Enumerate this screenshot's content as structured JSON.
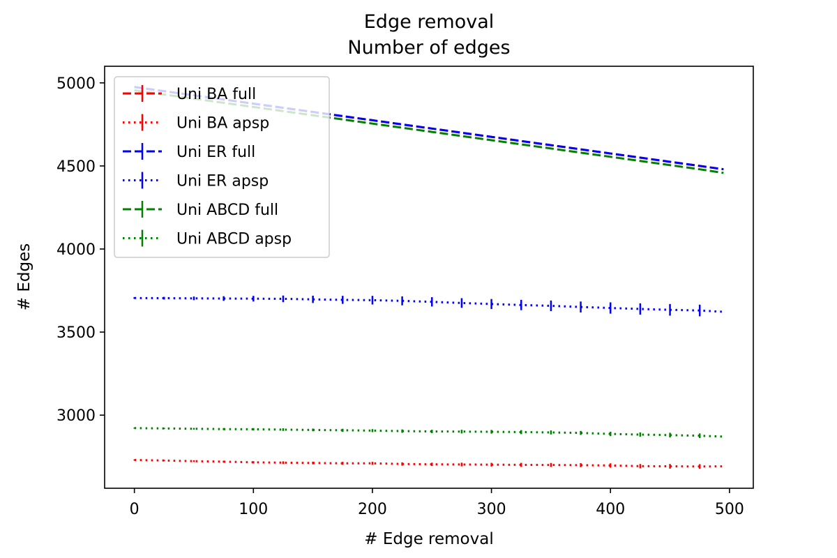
{
  "chart_data": {
    "type": "line",
    "title_lines": [
      "Edge removal",
      "Number of edges"
    ],
    "xlabel": "#  Edge removal",
    "ylabel": "# Edges",
    "xlim": [
      -25,
      520
    ],
    "ylim": [
      2560,
      5100
    ],
    "xticks": [
      0,
      100,
      200,
      300,
      400,
      500
    ],
    "yticks": [
      3000,
      3500,
      4000,
      4500,
      5000
    ],
    "grid": false,
    "legend_position": "upper-left",
    "x": [
      0,
      25,
      50,
      75,
      100,
      125,
      150,
      175,
      200,
      225,
      250,
      275,
      300,
      325,
      350,
      375,
      400,
      425,
      450,
      475,
      495
    ],
    "series": [
      {
        "name": "Uni BA full",
        "color": "#ff0000",
        "style": "dashed",
        "values": [
          4975,
          4950,
          4925,
          4900,
          4875,
          4850,
          4825,
          4800,
          4775,
          4750,
          4725,
          4700,
          4675,
          4650,
          4625,
          4600,
          4575,
          4550,
          4525,
          4500,
          4480
        ]
      },
      {
        "name": "Uni BA apsp",
        "color": "#ff0000",
        "style": "dotted",
        "values": [
          2730,
          2727,
          2723,
          2720,
          2716,
          2714,
          2712,
          2710,
          2710,
          2706,
          2704,
          2703,
          2702,
          2701,
          2700,
          2699,
          2697,
          2693,
          2692,
          2691,
          2692
        ],
        "errors": [
          3,
          4,
          5,
          6,
          7,
          8,
          8,
          9,
          9,
          10,
          10,
          11,
          11,
          12,
          12,
          12,
          13,
          13,
          14,
          14,
          0
        ]
      },
      {
        "name": "Uni ER full",
        "color": "#0000ff",
        "style": "dashed",
        "values": [
          4975,
          4950,
          4925,
          4900,
          4875,
          4850,
          4825,
          4800,
          4775,
          4750,
          4725,
          4700,
          4675,
          4650,
          4625,
          4600,
          4575,
          4550,
          4525,
          4500,
          4480
        ]
      },
      {
        "name": "Uni ER apsp",
        "color": "#0000ff",
        "style": "dotted",
        "values": [
          3705,
          3704,
          3703,
          3702,
          3701,
          3700,
          3697,
          3694,
          3692,
          3688,
          3682,
          3675,
          3669,
          3663,
          3658,
          3651,
          3645,
          3639,
          3634,
          3630,
          3622
        ],
        "errors": [
          5,
          8,
          11,
          14,
          17,
          20,
          22,
          24,
          26,
          27,
          28,
          29,
          30,
          31,
          32,
          33,
          34,
          34,
          35,
          35,
          0
        ]
      },
      {
        "name": "Uni ABCD full",
        "color": "#008000",
        "style": "dashed",
        "values": [
          4955,
          4930,
          4905,
          4880,
          4855,
          4830,
          4805,
          4780,
          4755,
          4730,
          4705,
          4680,
          4655,
          4630,
          4605,
          4580,
          4555,
          4530,
          4505,
          4480,
          4458
        ]
      },
      {
        "name": "Uni ABCD apsp",
        "color": "#008000",
        "style": "dotted",
        "values": [
          2922,
          2920,
          2918,
          2916,
          2915,
          2913,
          2911,
          2909,
          2907,
          2904,
          2902,
          2901,
          2900,
          2898,
          2896,
          2893,
          2887,
          2883,
          2880,
          2876,
          2871
        ],
        "errors": [
          3,
          4,
          5,
          6,
          7,
          8,
          8,
          9,
          9,
          10,
          10,
          11,
          11,
          12,
          12,
          12,
          13,
          13,
          14,
          14,
          0
        ]
      }
    ]
  }
}
